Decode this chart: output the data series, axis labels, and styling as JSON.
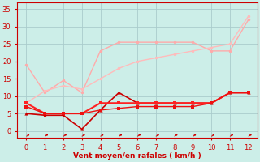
{
  "x": [
    0,
    1,
    2,
    3,
    4,
    5,
    6,
    7,
    8,
    9,
    10,
    11,
    12
  ],
  "series1": [
    19,
    11,
    14.5,
    11,
    23,
    25.5,
    25.5,
    25.5,
    25.5,
    25.5,
    23,
    23,
    32
  ],
  "series2": [
    8,
    11.5,
    13,
    12,
    15,
    18,
    20,
    21,
    22,
    23,
    24,
    25,
    33
  ],
  "series3": [
    5,
    4.5,
    4.5,
    0.5,
    6,
    11,
    8,
    8,
    8,
    8,
    8,
    11,
    11
  ],
  "series4": [
    8,
    5,
    5,
    5,
    8,
    8,
    8,
    8,
    8,
    8,
    8,
    11,
    11
  ],
  "series5": [
    7,
    5,
    5,
    5,
    6,
    6.5,
    7,
    7,
    7,
    7,
    8,
    11,
    11
  ],
  "color1": "#ffaaaa",
  "color2": "#ffbbbb",
  "color3": "#cc0000",
  "color4": "#ff2222",
  "color5": "#ee1111",
  "bg_color": "#cceee8",
  "grid_color": "#aacccc",
  "axis_color": "#cc0000",
  "xlabel": "Vent moyen/en rafales ( km/h )",
  "xlim": [
    -0.5,
    12.5
  ],
  "ylim": [
    -2,
    37
  ],
  "yticks": [
    0,
    5,
    10,
    15,
    20,
    25,
    30,
    35
  ],
  "xticks": [
    0,
    1,
    2,
    3,
    4,
    5,
    6,
    7,
    8,
    9,
    10,
    11,
    12
  ]
}
